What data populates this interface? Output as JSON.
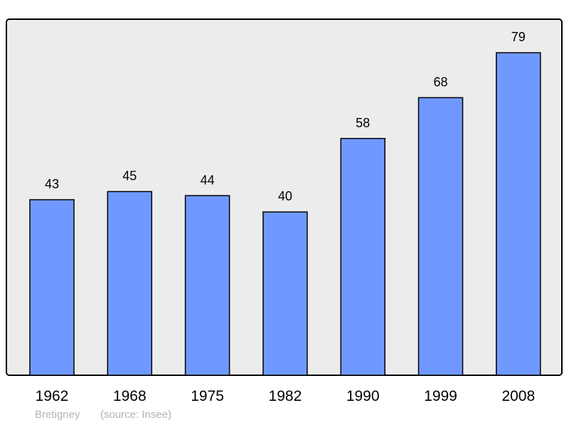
{
  "chart_data": {
    "type": "bar",
    "title": "",
    "xlabel": "",
    "ylabel": "",
    "categories": [
      "1962",
      "1968",
      "1975",
      "1982",
      "1990",
      "1999",
      "2008"
    ],
    "values": [
      43,
      45,
      44,
      40,
      58,
      68,
      79
    ],
    "ylim": [
      0,
      87
    ],
    "grid": false,
    "data_labels": true,
    "colors": {
      "bar": "#7099ff",
      "background": "#ececec",
      "border": "#000000"
    }
  },
  "footer": {
    "place": "Bretigney",
    "source": "(source: Insee)"
  }
}
